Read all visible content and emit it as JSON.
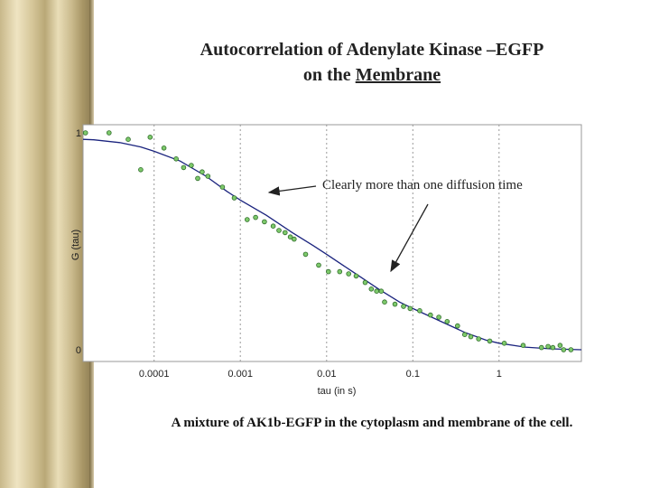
{
  "slide": {
    "title_line1": "Autocorrelation of Adenylate Kinase –EGFP",
    "title_line2_prefix": "on the ",
    "title_line2_underlined": "Membrane",
    "caption": "A mixture of AK1b-EGFP in the cytoplasm and membrane of the cell."
  },
  "colors": {
    "marker_fill": "#7dc96b",
    "marker_edge": "#2f6b2a",
    "fit_line": "#1a237e",
    "grid": "#999999",
    "border": "#c8b88a"
  },
  "chart_data": {
    "type": "scatter",
    "xlabel": "tau (in s)",
    "ylabel": "G (tau)",
    "x_scale": "log",
    "xlim": [
      1.5e-05,
      9
    ],
    "ylim": [
      0,
      1
    ],
    "x_ticks": [
      0.0001,
      0.001,
      0.01,
      0.1,
      1
    ],
    "x_tick_labels": [
      "0.0001",
      "0.001",
      "0.01",
      "0.1",
      "1"
    ],
    "y_ticks": [
      0,
      1
    ],
    "y_tick_labels": [
      "0",
      "1"
    ],
    "grid": "vertical dotted",
    "series": [
      {
        "kind": "points",
        "x": [
          1.6e-05,
          3e-05,
          5e-05,
          7e-05,
          9e-05,
          0.00013,
          0.00018,
          0.00022,
          0.00027,
          0.00032,
          0.00036,
          0.00042,
          0.00062,
          0.00085,
          0.0012,
          0.0015,
          0.0019,
          0.0024,
          0.0028,
          0.0033,
          0.0038,
          0.0042,
          0.0057,
          0.0081,
          0.0105,
          0.0142,
          0.018,
          0.022,
          0.028,
          0.033,
          0.038,
          0.043,
          0.047,
          0.062,
          0.078,
          0.093,
          0.12,
          0.16,
          0.2,
          0.25,
          0.33,
          0.4,
          0.47,
          0.58,
          0.78,
          1.15,
          1.9,
          3.1,
          3.7,
          4.2,
          5.1,
          5.6,
          6.8
        ],
        "y": [
          1.0,
          1.0,
          0.97,
          0.83,
          0.98,
          0.93,
          0.88,
          0.84,
          0.85,
          0.79,
          0.82,
          0.8,
          0.75,
          0.7,
          0.6,
          0.61,
          0.59,
          0.57,
          0.55,
          0.54,
          0.52,
          0.51,
          0.44,
          0.39,
          0.36,
          0.36,
          0.35,
          0.34,
          0.31,
          0.28,
          0.27,
          0.27,
          0.22,
          0.21,
          0.2,
          0.19,
          0.18,
          0.16,
          0.15,
          0.13,
          0.11,
          0.07,
          0.06,
          0.05,
          0.04,
          0.03,
          0.02,
          0.01,
          0.015,
          0.01,
          0.02,
          0.0,
          0.0
        ]
      },
      {
        "kind": "line",
        "x": [
          1.5e-05,
          2e-05,
          4e-05,
          7e-05,
          0.0001,
          0.0002,
          0.0004,
          0.0007,
          0.001,
          0.002,
          0.004,
          0.007,
          0.01,
          0.02,
          0.04,
          0.07,
          0.1,
          0.2,
          0.4,
          0.7,
          1,
          2,
          4,
          9
        ],
        "y": [
          0.97,
          0.968,
          0.955,
          0.935,
          0.915,
          0.87,
          0.8,
          0.73,
          0.69,
          0.62,
          0.54,
          0.48,
          0.44,
          0.36,
          0.28,
          0.22,
          0.19,
          0.135,
          0.08,
          0.045,
          0.03,
          0.012,
          0.004,
          0.0
        ]
      }
    ],
    "annotations": [
      {
        "text": "Clearly more than one diffusion time"
      }
    ]
  }
}
